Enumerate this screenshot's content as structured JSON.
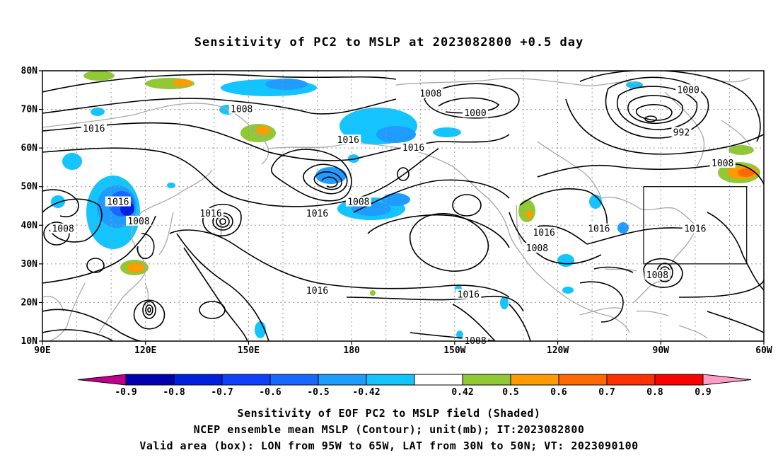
{
  "title": "Sensitivity of PC2 to MSLP at 2023082800 +0.5 day",
  "map": {
    "lon_range": [
      90,
      300
    ],
    "lat_range": [
      10,
      80
    ],
    "lat_ticks": [
      "80N",
      "70N",
      "60N",
      "50N",
      "40N",
      "30N",
      "20N",
      "10N"
    ],
    "lon_ticks": [
      "90E",
      "120E",
      "150E",
      "180",
      "150W",
      "120W",
      "90W",
      "60W"
    ],
    "valid_box": {
      "lon": [
        -95,
        -65
      ],
      "lat": [
        30,
        50
      ]
    },
    "contour_labels": [
      {
        "text": "1008",
        "lon": -157,
        "lat": 74
      },
      {
        "text": "1000",
        "lon": -144,
        "lat": 69
      },
      {
        "text": "1008",
        "lon": 148,
        "lat": 70
      },
      {
        "text": "1016",
        "lon": 105,
        "lat": 65
      },
      {
        "text": "1016",
        "lon": 179,
        "lat": 62
      },
      {
        "text": "1016",
        "lon": -162,
        "lat": 60
      },
      {
        "text": "1000",
        "lon": -82,
        "lat": 75
      },
      {
        "text": "992",
        "lon": -84,
        "lat": 64
      },
      {
        "text": "1008",
        "lon": -72,
        "lat": 56
      },
      {
        "text": "1016",
        "lon": 112,
        "lat": 46
      },
      {
        "text": "1016",
        "lon": 139,
        "lat": 43
      },
      {
        "text": "1008",
        "lon": 118,
        "lat": 41
      },
      {
        "text": "1008",
        "lon": 96,
        "lat": 39
      },
      {
        "text": "1016",
        "lon": 170,
        "lat": 43
      },
      {
        "text": "1008",
        "lon": -178,
        "lat": 46
      },
      {
        "text": "1016",
        "lon": -108,
        "lat": 39
      },
      {
        "text": "1016",
        "lon": -124,
        "lat": 38
      },
      {
        "text": "1008",
        "lon": -126,
        "lat": 34
      },
      {
        "text": "1016",
        "lon": -80,
        "lat": 39
      },
      {
        "text": "1008",
        "lon": -91,
        "lat": 27
      },
      {
        "text": "1016",
        "lon": 170,
        "lat": 23
      },
      {
        "text": "1016",
        "lon": -146,
        "lat": 22
      },
      {
        "text": "1008",
        "lon": -144,
        "lat": 10
      }
    ]
  },
  "colorbar": {
    "labels": [
      "-0.9",
      "-0.8",
      "-0.7",
      "-0.6",
      "-0.5",
      "-0.42",
      "0.42",
      "0.5",
      "0.6",
      "0.7",
      "0.8",
      "0.9"
    ],
    "colors": [
      "#0000b0",
      "#0020e0",
      "#1040ff",
      "#1868ff",
      "#1e9cff",
      "#14c4ff",
      "#ffffff",
      "#90c836",
      "#ff9c00",
      "#ff6a00",
      "#ff3000",
      "#ff0000"
    ],
    "low_end_color": "#c0008c",
    "high_end_color": "#ff9cc8"
  },
  "caption": {
    "line1": "Sensitivity of EOF PC2 to MSLP field (Shaded)",
    "line2": "NCEP ensemble mean MSLP (Contour); unit(mb); IT:2023082800",
    "line3": "Valid area (box): LON from 95W to 65W, LAT from 30N to 50N; VT: 2023090100"
  }
}
